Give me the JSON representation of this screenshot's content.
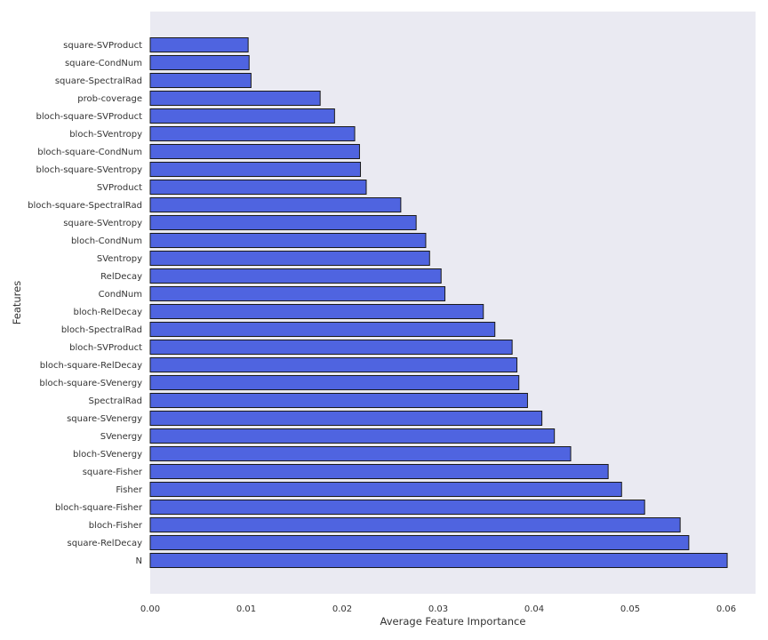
{
  "chart_data": {
    "type": "bar",
    "orientation": "horizontal",
    "title": "",
    "xlabel": "Average Feature Importance",
    "ylabel": "Features",
    "xlim": [
      0,
      0.063
    ],
    "xticks": [
      "0.00",
      "0.01",
      "0.02",
      "0.03",
      "0.04",
      "0.05",
      "0.06"
    ],
    "grid": false,
    "bar_color": "#4f64e0",
    "background_color": "#eaeaf2",
    "categories": [
      "square-SVProduct",
      "square-CondNum",
      "square-SpectralRad",
      "prob-coverage",
      "bloch-square-SVProduct",
      "bloch-SVentropy",
      "bloch-square-CondNum",
      "bloch-square-SVentropy",
      "SVProduct",
      "bloch-square-SpectralRad",
      "square-SVentropy",
      "bloch-CondNum",
      "SVentropy",
      "RelDecay",
      "CondNum",
      "bloch-RelDecay",
      "bloch-SpectralRad",
      "bloch-SVProduct",
      "bloch-square-RelDecay",
      "bloch-square-SVenergy",
      "SpectralRad",
      "square-SVenergy",
      "SVenergy",
      "bloch-SVenergy",
      "square-Fisher",
      "Fisher",
      "bloch-square-Fisher",
      "bloch-Fisher",
      "square-RelDecay",
      "N"
    ],
    "values": [
      0.0102,
      0.0103,
      0.0105,
      0.0177,
      0.0192,
      0.0213,
      0.0218,
      0.0219,
      0.0225,
      0.0261,
      0.0277,
      0.0287,
      0.0291,
      0.0303,
      0.0307,
      0.0347,
      0.0359,
      0.0377,
      0.0382,
      0.0384,
      0.0393,
      0.0408,
      0.0421,
      0.0438,
      0.0477,
      0.0491,
      0.0515,
      0.0552,
      0.0561,
      0.0601
    ]
  }
}
